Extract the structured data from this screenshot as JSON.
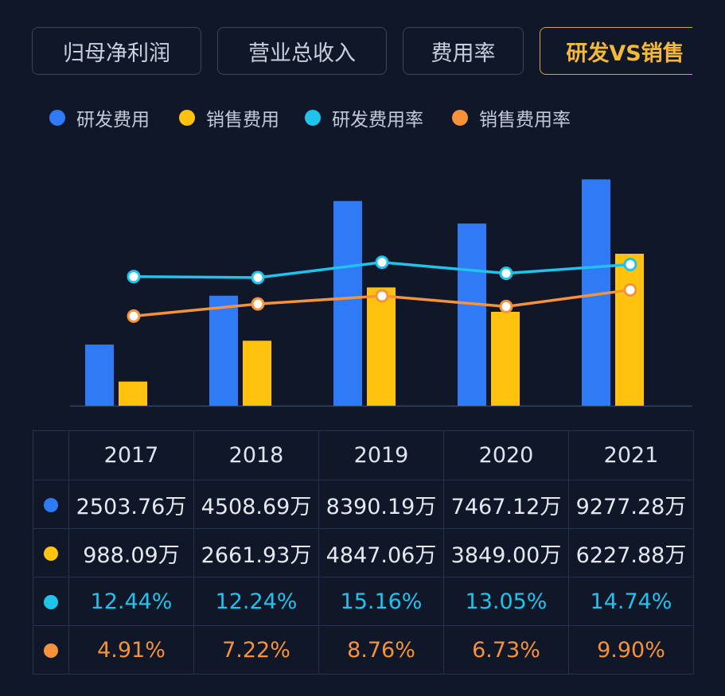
{
  "tabs": [
    {
      "label": "归母净利润",
      "active": false
    },
    {
      "label": "营业总收入",
      "active": false
    },
    {
      "label": "费用率",
      "active": false
    },
    {
      "label": "研发VS销售",
      "active": true
    }
  ],
  "colors": {
    "rd_expense": "#2f7bf6",
    "sales_expense": "#ffc20e",
    "rd_rate": "#1fc3ec",
    "sales_rate": "#f5923a"
  },
  "chart_data": {
    "type": "bar",
    "categories": [
      "2017",
      "2018",
      "2019",
      "2020",
      "2021"
    ],
    "series": [
      {
        "name": "研发费用",
        "type": "bar",
        "axis": "left",
        "unit": "万",
        "values": [
          2503.76,
          4508.69,
          8390.19,
          7467.12,
          9277.28
        ]
      },
      {
        "name": "销售费用",
        "type": "bar",
        "axis": "left",
        "unit": "万",
        "values": [
          988.09,
          2661.93,
          4847.06,
          3849.0,
          6227.88
        ]
      },
      {
        "name": "研发费用率",
        "type": "line",
        "axis": "right",
        "unit": "%",
        "values": [
          12.44,
          12.24,
          15.16,
          13.05,
          14.74
        ]
      },
      {
        "name": "销售费用率",
        "type": "line",
        "axis": "right",
        "unit": "%",
        "values": [
          4.91,
          7.22,
          8.76,
          6.73,
          9.9
        ]
      }
    ],
    "legend_position": "top-left",
    "grid": false,
    "axes_visible": false
  },
  "table": {
    "rows": [
      {
        "series": "rd_expense",
        "cells": [
          "2503.76万",
          "4508.69万",
          "8390.19万",
          "7467.12万",
          "9277.28万"
        ]
      },
      {
        "series": "sales_expense",
        "cells": [
          "988.09万",
          "2661.93万",
          "4847.06万",
          "3849.00万",
          "6227.88万"
        ]
      },
      {
        "series": "rd_rate",
        "cells": [
          "12.44%",
          "12.24%",
          "15.16%",
          "13.05%",
          "14.74%"
        ]
      },
      {
        "series": "sales_rate",
        "cells": [
          "4.91%",
          "7.22%",
          "8.76%",
          "6.73%",
          "9.90%"
        ]
      }
    ]
  }
}
